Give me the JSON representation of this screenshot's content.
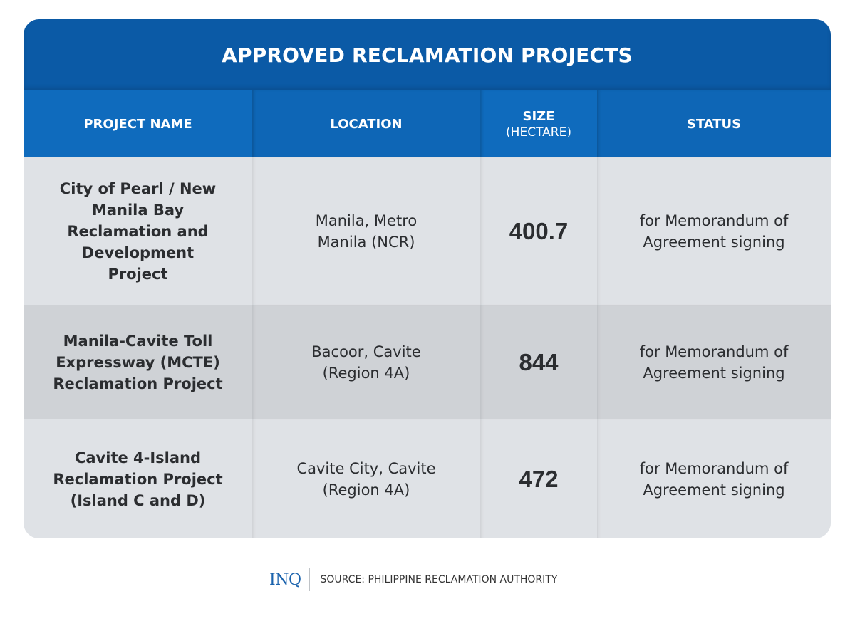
{
  "title": "APPROVED RECLAMATION PROJECTS",
  "table": {
    "headers": [
      {
        "label": "PROJECT NAME",
        "sub": ""
      },
      {
        "label": "LOCATION",
        "sub": ""
      },
      {
        "label": "SIZE",
        "sub": "(HECTARE)"
      },
      {
        "label": "STATUS",
        "sub": ""
      }
    ],
    "rows": [
      {
        "name": "City of Pearl / New Manila Bay Reclamation and Development Project",
        "location": "Manila, Metro Manila (NCR)",
        "size": "400.7",
        "status": "for Memorandum of Agreement signing"
      },
      {
        "name": "Manila-Cavite Toll Expressway (MCTE) Reclamation Project",
        "location": "Bacoor, Cavite (Region 4A)",
        "size": "844",
        "status": "for Memorandum of Agreement signing"
      },
      {
        "name": "Cavite 4-Island Reclamation Project (Island C and D)",
        "location": "Cavite City, Cavite (Region 4A)",
        "size": "472",
        "status": "for Memorandum of Agreement signing"
      }
    ]
  },
  "footer": {
    "logo": "INQ",
    "source": "SOURCE: PHILIPPINE RECLAMATION AUTHORITY"
  },
  "colors": {
    "title_bg": "#0b5aa6",
    "header_bg": "#0f6bbd",
    "row_light": "#dfe2e6",
    "row_dark": "#cfd2d6",
    "logo": "#1b63ad"
  }
}
